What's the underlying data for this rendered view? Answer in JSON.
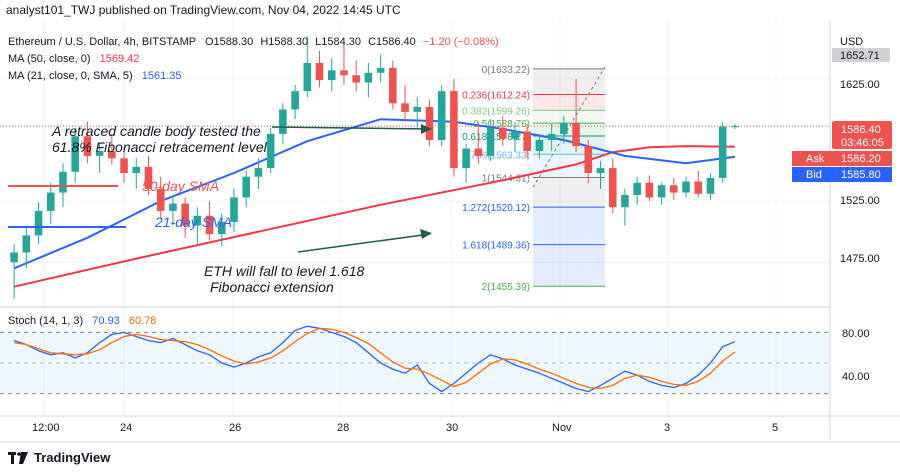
{
  "publisher_line": "analyst101_TWJ published on TradingView.com, Nov 04, 2022 14:45 UTC",
  "footer_brand": "TradingView",
  "colors": {
    "up": "#26a69a",
    "down": "#ef5350",
    "ma50": "#f23645",
    "ma21": "#2962ff",
    "stoch_k": "#2962ff",
    "stoch_d": "#ff6d00",
    "fib_green": "#4caf50",
    "fib_blue": "#2962ff"
  },
  "legend": {
    "symbol": "Ethereum / U.S. Dollar, 4h, BITSTAMP",
    "o_label": "O",
    "o": "1588.30",
    "h_label": "H",
    "h": "1588.30",
    "l_label": "L",
    "l": "1584.30",
    "c_label": "C",
    "c": "1586.40",
    "chg": "−1.20 (−0.08%)",
    "ma50_label": "MA (50, close, 0)",
    "ma50_value": "1569.42",
    "ma21_label": "MA (21, close, 0, SMA, 5)",
    "ma21_value": "1561.35"
  },
  "price_axis": {
    "currency": "USD",
    "ticks": [
      "1625.00",
      "1525.00",
      "1475.00"
    ],
    "top_partial": "1652.71",
    "last_price": "1586.40",
    "countdown": "03:46:05",
    "ask_label": "Ask",
    "ask": "1586.20",
    "bid_label": "Bid",
    "bid": "1585.80"
  },
  "stoch": {
    "label": "Stoch (14, 1, 3)",
    "k_value": "70.93",
    "d_value": "60.78",
    "ticks": [
      "80.00",
      "40.00"
    ]
  },
  "time_axis": [
    "12:00",
    "24",
    "26",
    "28",
    "30",
    "Nov",
    "3",
    "5"
  ],
  "annotations": {
    "text1_line1": "A retraced candle body tested the",
    "text1_line2": "61.8% Fibonacci retracement level",
    "sma50_label": "50-day SMA",
    "sma21_label": "21-day SMA",
    "text2_line1": "ETH will fall to level  1.618",
    "text2_line2": "Fibonacci extension"
  },
  "fib_levels": [
    {
      "label": "0(1633.22)",
      "price": 1633.22
    },
    {
      "label": "0.236(1612.24)",
      "price": 1612.24
    },
    {
      "label": "0.382(1599.26)",
      "price": 1599.26
    },
    {
      "label": "0.5(1588.76)",
      "price": 1588.76
    },
    {
      "label": "0.618(1578.27)",
      "price": 1578.27
    },
    {
      "label": "0.786(1563.33)",
      "price": 1563.33
    },
    {
      "label": "1(1544.31)",
      "price": 1544.31
    },
    {
      "label": "1.272(1520.12)",
      "price": 1520.12
    },
    {
      "label": "1.618(1489.36)",
      "price": 1489.36
    },
    {
      "label": "2(1455.39)",
      "price": 1455.39
    }
  ],
  "chart_data": {
    "type": "candlestick",
    "title": "Ethereum / U.S. Dollar, 4h, BITSTAMP",
    "ylim": [
      1440,
      1665
    ],
    "y_ticks": [
      1475,
      1525,
      1625
    ],
    "grid": true,
    "candles": [
      {
        "o": 1475,
        "h": 1490,
        "l": 1445,
        "c": 1483
      },
      {
        "o": 1483,
        "h": 1505,
        "l": 1470,
        "c": 1497
      },
      {
        "o": 1497,
        "h": 1524,
        "l": 1490,
        "c": 1517
      },
      {
        "o": 1517,
        "h": 1540,
        "l": 1506,
        "c": 1532
      },
      {
        "o": 1532,
        "h": 1556,
        "l": 1520,
        "c": 1549
      },
      {
        "o": 1549,
        "h": 1585,
        "l": 1540,
        "c": 1578
      },
      {
        "o": 1578,
        "h": 1590,
        "l": 1556,
        "c": 1562
      },
      {
        "o": 1562,
        "h": 1572,
        "l": 1548,
        "c": 1566
      },
      {
        "o": 1566,
        "h": 1580,
        "l": 1555,
        "c": 1560
      },
      {
        "o": 1560,
        "h": 1567,
        "l": 1540,
        "c": 1548
      },
      {
        "o": 1548,
        "h": 1560,
        "l": 1535,
        "c": 1553
      },
      {
        "o": 1553,
        "h": 1562,
        "l": 1530,
        "c": 1535
      },
      {
        "o": 1535,
        "h": 1545,
        "l": 1510,
        "c": 1517
      },
      {
        "o": 1517,
        "h": 1530,
        "l": 1505,
        "c": 1523
      },
      {
        "o": 1523,
        "h": 1528,
        "l": 1495,
        "c": 1505
      },
      {
        "o": 1505,
        "h": 1520,
        "l": 1490,
        "c": 1513
      },
      {
        "o": 1513,
        "h": 1525,
        "l": 1493,
        "c": 1498
      },
      {
        "o": 1498,
        "h": 1515,
        "l": 1488,
        "c": 1508
      },
      {
        "o": 1508,
        "h": 1535,
        "l": 1500,
        "c": 1528
      },
      {
        "o": 1528,
        "h": 1550,
        "l": 1520,
        "c": 1545
      },
      {
        "o": 1545,
        "h": 1560,
        "l": 1535,
        "c": 1552
      },
      {
        "o": 1552,
        "h": 1585,
        "l": 1548,
        "c": 1580
      },
      {
        "o": 1580,
        "h": 1605,
        "l": 1572,
        "c": 1600
      },
      {
        "o": 1600,
        "h": 1620,
        "l": 1592,
        "c": 1615
      },
      {
        "o": 1615,
        "h": 1660,
        "l": 1610,
        "c": 1638
      },
      {
        "o": 1638,
        "h": 1648,
        "l": 1618,
        "c": 1624
      },
      {
        "o": 1624,
        "h": 1642,
        "l": 1615,
        "c": 1632
      },
      {
        "o": 1632,
        "h": 1655,
        "l": 1620,
        "c": 1628
      },
      {
        "o": 1628,
        "h": 1640,
        "l": 1615,
        "c": 1622
      },
      {
        "o": 1622,
        "h": 1638,
        "l": 1610,
        "c": 1630
      },
      {
        "o": 1630,
        "h": 1645,
        "l": 1622,
        "c": 1634
      },
      {
        "o": 1634,
        "h": 1640,
        "l": 1600,
        "c": 1605
      },
      {
        "o": 1605,
        "h": 1620,
        "l": 1590,
        "c": 1598
      },
      {
        "o": 1598,
        "h": 1610,
        "l": 1585,
        "c": 1602
      },
      {
        "o": 1602,
        "h": 1608,
        "l": 1570,
        "c": 1575
      },
      {
        "o": 1575,
        "h": 1620,
        "l": 1570,
        "c": 1615
      },
      {
        "o": 1615,
        "h": 1625,
        "l": 1545,
        "c": 1552
      },
      {
        "o": 1552,
        "h": 1572,
        "l": 1540,
        "c": 1568
      },
      {
        "o": 1568,
        "h": 1590,
        "l": 1555,
        "c": 1562
      },
      {
        "o": 1562,
        "h": 1592,
        "l": 1558,
        "c": 1585
      },
      {
        "o": 1585,
        "h": 1595,
        "l": 1570,
        "c": 1576
      },
      {
        "o": 1576,
        "h": 1590,
        "l": 1565,
        "c": 1582
      },
      {
        "o": 1582,
        "h": 1588,
        "l": 1560,
        "c": 1566
      },
      {
        "o": 1566,
        "h": 1580,
        "l": 1560,
        "c": 1575
      },
      {
        "o": 1575,
        "h": 1588,
        "l": 1566,
        "c": 1580
      },
      {
        "o": 1580,
        "h": 1595,
        "l": 1572,
        "c": 1589
      },
      {
        "o": 1589,
        "h": 1625,
        "l": 1565,
        "c": 1570
      },
      {
        "o": 1570,
        "h": 1575,
        "l": 1540,
        "c": 1548
      },
      {
        "o": 1548,
        "h": 1558,
        "l": 1535,
        "c": 1552
      },
      {
        "o": 1552,
        "h": 1560,
        "l": 1515,
        "c": 1520
      },
      {
        "o": 1520,
        "h": 1535,
        "l": 1505,
        "c": 1530
      },
      {
        "o": 1530,
        "h": 1545,
        "l": 1522,
        "c": 1540
      },
      {
        "o": 1540,
        "h": 1546,
        "l": 1525,
        "c": 1528
      },
      {
        "o": 1528,
        "h": 1540,
        "l": 1522,
        "c": 1538
      },
      {
        "o": 1538,
        "h": 1544,
        "l": 1526,
        "c": 1532
      },
      {
        "o": 1532,
        "h": 1545,
        "l": 1528,
        "c": 1541
      },
      {
        "o": 1541,
        "h": 1550,
        "l": 1528,
        "c": 1531
      },
      {
        "o": 1531,
        "h": 1548,
        "l": 1526,
        "c": 1544
      },
      {
        "o": 1544,
        "h": 1590,
        "l": 1540,
        "c": 1586
      },
      {
        "o": 1586,
        "h": 1588,
        "l": 1584,
        "c": 1586.4
      }
    ],
    "sma50": [
      [
        0,
        1455
      ],
      [
        10,
        1478
      ],
      [
        20,
        1500
      ],
      [
        30,
        1522
      ],
      [
        40,
        1542
      ],
      [
        46,
        1555
      ],
      [
        49,
        1565
      ],
      [
        52,
        1569
      ],
      [
        55,
        1570
      ],
      [
        59,
        1569.42
      ]
    ],
    "sma21": [
      [
        0,
        1470
      ],
      [
        6,
        1495
      ],
      [
        12,
        1525
      ],
      [
        18,
        1548
      ],
      [
        24,
        1574
      ],
      [
        30,
        1592
      ],
      [
        36,
        1590
      ],
      [
        40,
        1584
      ],
      [
        45,
        1575
      ],
      [
        50,
        1562
      ],
      [
        55,
        1556
      ],
      [
        59,
        1561.35
      ]
    ],
    "stoch_k": [
      72,
      68,
      62,
      58,
      60,
      55,
      60,
      70,
      78,
      80,
      76,
      72,
      70,
      74,
      68,
      62,
      58,
      50,
      46,
      50,
      56,
      60,
      70,
      82,
      86,
      84,
      80,
      76,
      70,
      60,
      50,
      44,
      40,
      48,
      30,
      22,
      30,
      40,
      50,
      58,
      54,
      48,
      44,
      40,
      35,
      30,
      25,
      22,
      28,
      35,
      42,
      38,
      32,
      28,
      26,
      30,
      38,
      50,
      66,
      70.93
    ],
    "stoch_d": [
      70,
      68,
      64,
      60,
      59,
      58,
      59,
      63,
      70,
      76,
      78,
      76,
      73,
      72,
      71,
      68,
      63,
      57,
      52,
      49,
      51,
      55,
      62,
      71,
      79,
      84,
      83,
      80,
      75,
      69,
      60,
      51,
      45,
      44,
      39,
      33,
      27,
      31,
      40,
      49,
      54,
      53,
      49,
      44,
      40,
      35,
      30,
      26,
      25,
      28,
      35,
      38,
      36,
      32,
      29,
      28,
      32,
      40,
      52,
      60.78
    ],
    "stoch_ylim": [
      0,
      100
    ],
    "stoch_bands": [
      80,
      20
    ]
  }
}
